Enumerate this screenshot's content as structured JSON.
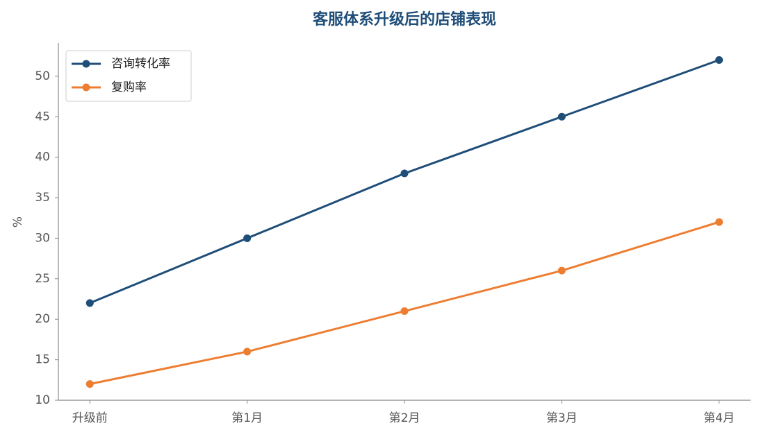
{
  "chart_data": {
    "type": "line",
    "title": "客服体系升级后的店铺表现",
    "y_label": "%",
    "categories": [
      "升级前",
      "第1月",
      "第2月",
      "第3月",
      "第4月"
    ],
    "series": [
      {
        "name": "咨询转化率",
        "color": "#1f4e79",
        "values": [
          22,
          30,
          38,
          45,
          52
        ]
      },
      {
        "name": "复购率",
        "color": "#ed7d31",
        "values": [
          12,
          16,
          21,
          26,
          32
        ]
      }
    ],
    "ylim": [
      10,
      54.1
    ],
    "yticks": [
      10,
      15,
      20,
      25,
      30,
      35,
      40,
      45,
      50
    ],
    "grid": false,
    "legend": "upper left"
  }
}
